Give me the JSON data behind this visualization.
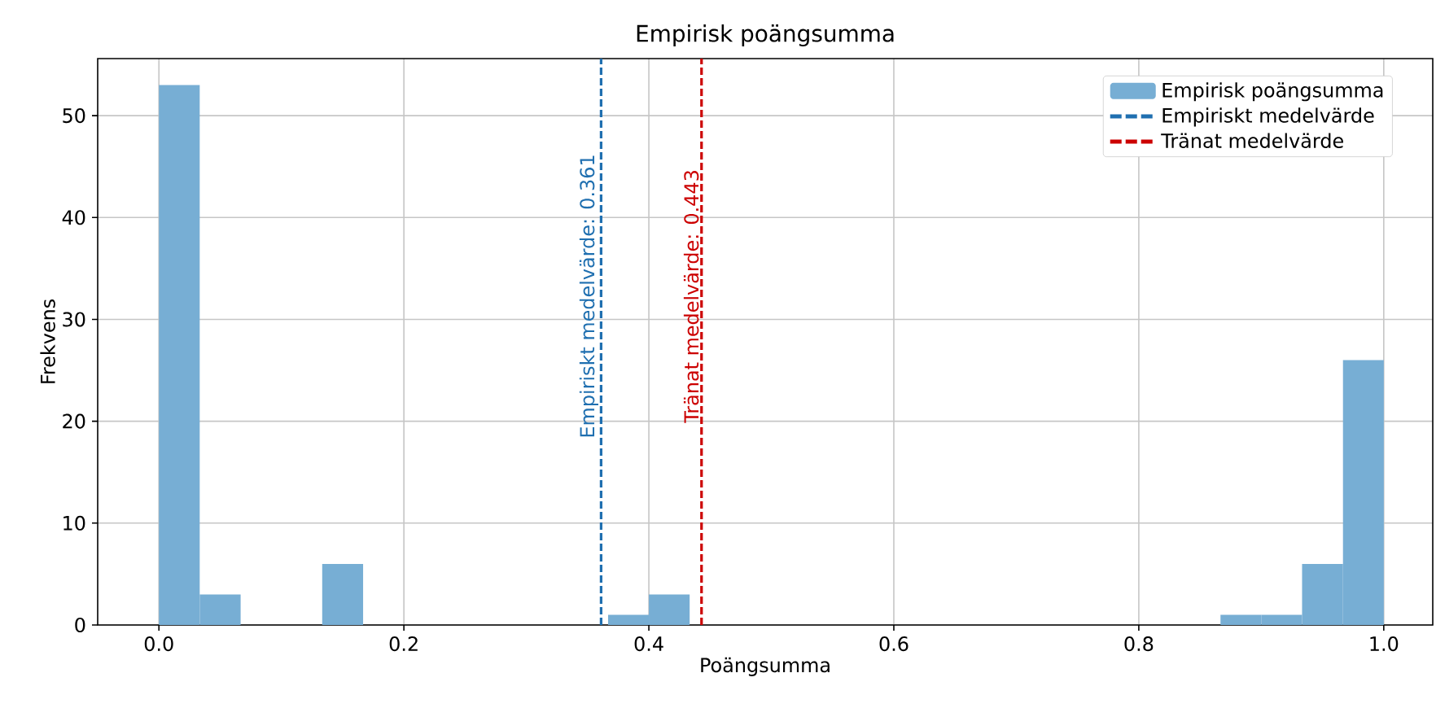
{
  "chart_data": {
    "type": "histogram",
    "title": "Empirisk poängsumma",
    "xlabel": "Poängsumma",
    "ylabel": "Frekvens",
    "bins": [
      0,
      0.0333,
      0.0667,
      0.1,
      0.1333,
      0.1667,
      0.2,
      0.2333,
      0.2667,
      0.3,
      0.3333,
      0.3667,
      0.4,
      0.4333,
      0.4667,
      0.5,
      0.5333,
      0.5667,
      0.6,
      0.6333,
      0.6667,
      0.7,
      0.7333,
      0.7667,
      0.8,
      0.8333,
      0.8667,
      0.9,
      0.9333,
      0.9667,
      1
    ],
    "series": [
      {
        "name": "Empirisk poängsumma",
        "color": "#77aed4",
        "values": [
          53,
          3,
          0,
          0,
          6,
          0,
          0,
          0,
          0,
          0,
          0,
          1,
          3,
          0,
          0,
          0,
          0,
          0,
          0,
          0,
          0,
          0,
          0,
          0,
          0,
          0,
          1,
          1,
          6,
          26
        ]
      }
    ],
    "xlim": [
      -0.05,
      1.04
    ],
    "ylim": [
      0,
      55.6
    ],
    "xticks": [
      {
        "value": 0,
        "label": "0.0"
      },
      {
        "value": 0.2,
        "label": "0.2"
      },
      {
        "value": 0.4,
        "label": "0.4"
      },
      {
        "value": 0.6,
        "label": "0.6"
      },
      {
        "value": 0.8,
        "label": "0.8"
      },
      {
        "value": 1,
        "label": "1.0"
      }
    ],
    "yticks": [
      0,
      10,
      20,
      30,
      40,
      50
    ],
    "grid": true,
    "legend": "top right",
    "ref_lines": [
      {
        "axis": "x",
        "value": 0.361,
        "label": "Empiriskt medelvärde: 0.361",
        "color": "#1f6fb0",
        "line_style": "dashed"
      },
      {
        "axis": "x",
        "value": 0.443,
        "label": "Tränat medelvärde: 0.443",
        "color": "#cc0000",
        "line_style": "dashed"
      }
    ],
    "annotations": [
      "Empiriskt medelvärde",
      "Tränat medelvärde"
    ]
  }
}
